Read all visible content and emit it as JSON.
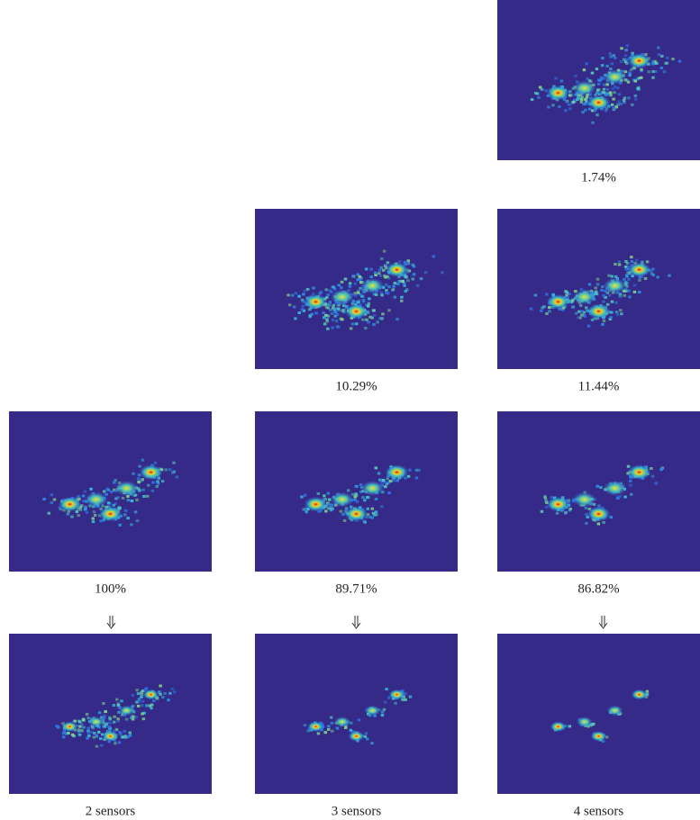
{
  "figure": {
    "panels": [
      {
        "caption": "1.74%"
      },
      {
        "caption": "10.29%"
      },
      {
        "caption": "11.44%"
      },
      {
        "caption": "100%"
      },
      {
        "caption": "89.71%"
      },
      {
        "caption": "86.82%"
      },
      {
        "caption": "2 sensors"
      },
      {
        "caption": "3 sensors"
      },
      {
        "caption": "4 sensors"
      }
    ]
  }
}
